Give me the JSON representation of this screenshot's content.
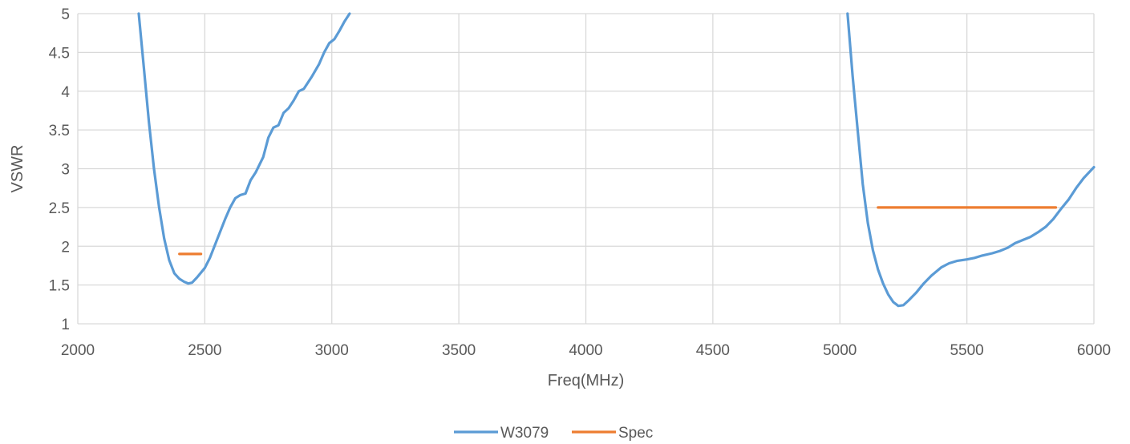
{
  "chart_data": {
    "type": "line",
    "title": "",
    "xlabel": "Freq(MHz)",
    "ylabel": "VSWR",
    "xlim": [
      2000,
      6000
    ],
    "ylim": [
      1,
      5
    ],
    "xticks": [
      2000,
      2500,
      3000,
      3500,
      4000,
      4500,
      5000,
      5500,
      6000
    ],
    "yticks": [
      1,
      1.5,
      2,
      2.5,
      3,
      3.5,
      4,
      4.5,
      5
    ],
    "ytick_labels": [
      "1",
      "1.5",
      "2",
      "2.5",
      "3",
      "3.5",
      "4",
      "4.5",
      "5"
    ],
    "grid": true,
    "legend_position": "bottom",
    "series": [
      {
        "name": "W3079",
        "color": "#5b9bd5",
        "segments": [
          [
            [
              2240,
              5.0
            ],
            [
              2260,
              4.3
            ],
            [
              2280,
              3.6
            ],
            [
              2300,
              3.0
            ],
            [
              2320,
              2.5
            ],
            [
              2340,
              2.1
            ],
            [
              2360,
              1.82
            ],
            [
              2380,
              1.65
            ],
            [
              2400,
              1.58
            ],
            [
              2420,
              1.54
            ],
            [
              2435,
              1.52
            ],
            [
              2450,
              1.53
            ],
            [
              2470,
              1.6
            ],
            [
              2500,
              1.72
            ],
            [
              2520,
              1.85
            ],
            [
              2550,
              2.1
            ],
            [
              2580,
              2.35
            ],
            [
              2600,
              2.5
            ],
            [
              2620,
              2.62
            ],
            [
              2640,
              2.66
            ],
            [
              2660,
              2.68
            ],
            [
              2680,
              2.85
            ],
            [
              2700,
              2.95
            ],
            [
              2730,
              3.15
            ],
            [
              2750,
              3.4
            ],
            [
              2770,
              3.53
            ],
            [
              2790,
              3.56
            ],
            [
              2810,
              3.72
            ],
            [
              2830,
              3.78
            ],
            [
              2850,
              3.88
            ],
            [
              2870,
              4.0
            ],
            [
              2890,
              4.03
            ],
            [
              2920,
              4.18
            ],
            [
              2950,
              4.35
            ],
            [
              2970,
              4.5
            ],
            [
              2990,
              4.62
            ],
            [
              3010,
              4.67
            ],
            [
              3030,
              4.78
            ],
            [
              3050,
              4.9
            ],
            [
              3070,
              5.0
            ]
          ],
          [
            [
              5030,
              5.0
            ],
            [
              5050,
              4.2
            ],
            [
              5070,
              3.5
            ],
            [
              5090,
              2.8
            ],
            [
              5110,
              2.3
            ],
            [
              5130,
              1.95
            ],
            [
              5150,
              1.7
            ],
            [
              5170,
              1.52
            ],
            [
              5190,
              1.38
            ],
            [
              5210,
              1.28
            ],
            [
              5230,
              1.23
            ],
            [
              5250,
              1.24
            ],
            [
              5270,
              1.3
            ],
            [
              5300,
              1.4
            ],
            [
              5330,
              1.52
            ],
            [
              5360,
              1.62
            ],
            [
              5400,
              1.73
            ],
            [
              5430,
              1.78
            ],
            [
              5460,
              1.81
            ],
            [
              5500,
              1.83
            ],
            [
              5530,
              1.85
            ],
            [
              5560,
              1.88
            ],
            [
              5600,
              1.91
            ],
            [
              5630,
              1.94
            ],
            [
              5660,
              1.98
            ],
            [
              5690,
              2.04
            ],
            [
              5720,
              2.08
            ],
            [
              5750,
              2.12
            ],
            [
              5780,
              2.18
            ],
            [
              5810,
              2.25
            ],
            [
              5840,
              2.35
            ],
            [
              5870,
              2.48
            ],
            [
              5900,
              2.6
            ],
            [
              5930,
              2.75
            ],
            [
              5960,
              2.88
            ],
            [
              5980,
              2.95
            ],
            [
              6000,
              3.02
            ]
          ]
        ]
      },
      {
        "name": "Spec",
        "color": "#ed7d31",
        "segments": [
          [
            [
              2400,
              1.9
            ],
            [
              2485,
              1.9
            ]
          ],
          [
            [
              5150,
              2.5
            ],
            [
              5850,
              2.5
            ]
          ]
        ]
      }
    ]
  }
}
